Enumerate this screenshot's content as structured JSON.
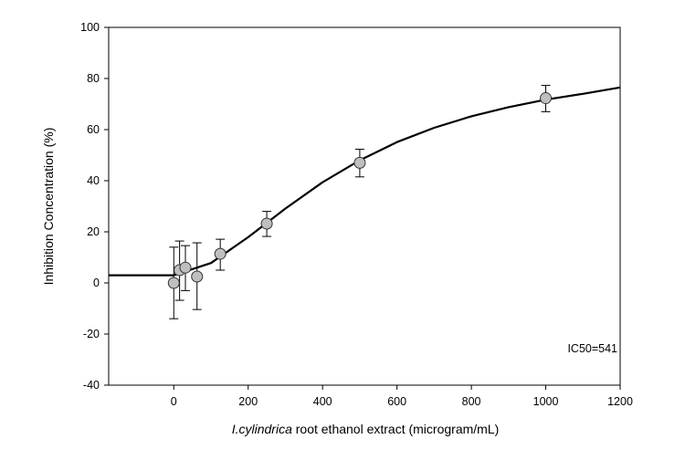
{
  "chart_data": {
    "type": "scatter",
    "xlabel_italic": "I.cylindrica",
    "xlabel_rest": " root ethanol extract (microgram/mL)",
    "ylabel": "Inhibition Concentration (%)",
    "annotation": "IC50=541",
    "xlim": [
      -175,
      1200
    ],
    "ylim": [
      -40,
      100
    ],
    "xticks": [
      0,
      200,
      400,
      600,
      800,
      1000,
      1200
    ],
    "yticks": [
      -40,
      -20,
      0,
      20,
      40,
      60,
      80,
      100
    ],
    "grid": false,
    "points": [
      {
        "x": 0,
        "y": 0,
        "err_hi": 14,
        "err_lo": -14
      },
      {
        "x": 15.6,
        "y": 5,
        "err_hi": 16.4,
        "err_lo": -6.8
      },
      {
        "x": 31.25,
        "y": 6,
        "err_hi": 14.6,
        "err_lo": -3
      },
      {
        "x": 62.5,
        "y": 2.5,
        "err_hi": 15.7,
        "err_lo": -10.4
      },
      {
        "x": 125,
        "y": 11.4,
        "err_hi": 17.1,
        "err_lo": 5
      },
      {
        "x": 250,
        "y": 23.2,
        "err_hi": 28,
        "err_lo": 18.2
      },
      {
        "x": 500,
        "y": 47,
        "err_hi": 52.3,
        "err_lo": 41.5
      },
      {
        "x": 1000,
        "y": 72.3,
        "err_hi": 77.3,
        "err_lo": 67
      }
    ],
    "fit_curve": {
      "x": [
        -175,
        0,
        100,
        200,
        300,
        400,
        500,
        600,
        700,
        800,
        900,
        1000,
        1100,
        1200
      ],
      "y": [
        3,
        3,
        7.8,
        17.9,
        29.1,
        39.4,
        48,
        55.1,
        60.7,
        65.2,
        68.8,
        71.7,
        74,
        76.5
      ]
    },
    "colors": {
      "marker_fill": "#bfbfbf",
      "line": "#000000"
    }
  }
}
